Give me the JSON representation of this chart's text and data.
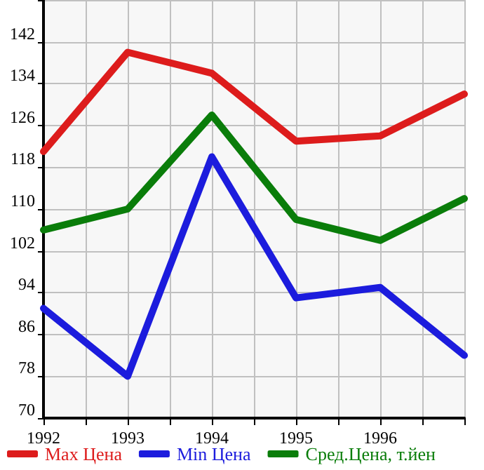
{
  "chart_data": {
    "type": "line",
    "x": [
      1992,
      1993,
      1994,
      1995,
      1996,
      1997
    ],
    "series": [
      {
        "name": "Max Цена",
        "color": "#dd1c1c",
        "values": [
          121,
          140,
          136,
          123,
          124,
          132
        ]
      },
      {
        "name": "Min Цена",
        "color": "#1c1cdd",
        "values": [
          91,
          78,
          120,
          93,
          95,
          82
        ]
      },
      {
        "name": "Сред.Цена, т.йен",
        "color": "#0a7d0a",
        "values": [
          106,
          110,
          128,
          108,
          104,
          112
        ]
      }
    ],
    "xlim": [
      1992,
      1997
    ],
    "xticks": [
      1992,
      {
        "value": 1992.5,
        "label": null
      },
      1993,
      {
        "value": 1993.5,
        "label": null
      },
      1994,
      {
        "value": 1994.5,
        "label": null
      },
      1995,
      {
        "value": 1995.5,
        "label": null
      },
      1996,
      {
        "value": 1996.5,
        "label": null
      },
      {
        "value": 1997,
        "label": null
      }
    ],
    "ylim": [
      70,
      150
    ],
    "yticks": [
      70,
      78,
      86,
      94,
      102,
      110,
      118,
      126,
      134,
      142,
      {
        "value": 150,
        "label": null
      }
    ],
    "grid": true,
    "legend": "bottom",
    "marker": "none",
    "line_style": "solid"
  }
}
